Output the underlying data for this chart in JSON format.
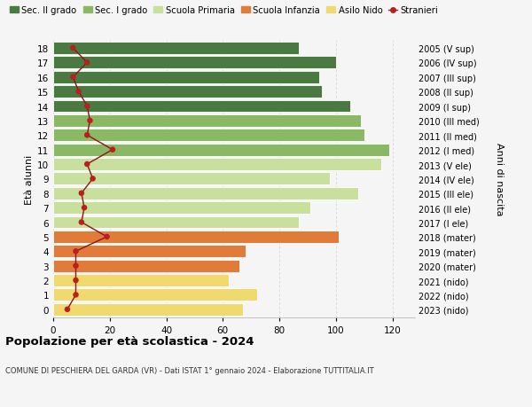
{
  "ages": [
    0,
    1,
    2,
    3,
    4,
    5,
    6,
    7,
    8,
    9,
    10,
    11,
    12,
    13,
    14,
    15,
    16,
    17,
    18
  ],
  "anni": [
    "2023 (nido)",
    "2022 (nido)",
    "2021 (nido)",
    "2020 (mater)",
    "2019 (mater)",
    "2018 (mater)",
    "2017 (I ele)",
    "2016 (II ele)",
    "2015 (III ele)",
    "2014 (IV ele)",
    "2013 (V ele)",
    "2012 (I med)",
    "2011 (II med)",
    "2010 (III med)",
    "2009 (I sup)",
    "2008 (II sup)",
    "2007 (III sup)",
    "2006 (IV sup)",
    "2005 (V sup)"
  ],
  "bar_values": [
    67,
    72,
    62,
    66,
    68,
    101,
    87,
    91,
    108,
    98,
    116,
    119,
    110,
    109,
    105,
    95,
    94,
    100,
    87
  ],
  "bar_colors": [
    "#f0d96e",
    "#f0d96e",
    "#f0d96e",
    "#e07b3a",
    "#e07b3a",
    "#e07b3a",
    "#c8df9e",
    "#c8df9e",
    "#c8df9e",
    "#c8df9e",
    "#c8df9e",
    "#8bb865",
    "#8bb865",
    "#8bb865",
    "#4a7a42",
    "#4a7a42",
    "#4a7a42",
    "#4a7a42",
    "#4a7a42"
  ],
  "stranieri": [
    5,
    8,
    8,
    8,
    8,
    19,
    10,
    11,
    10,
    14,
    12,
    21,
    12,
    13,
    12,
    9,
    7,
    12,
    7
  ],
  "ylabel_left": "Età alunni",
  "ylabel_right": "Anni di nascita",
  "title_bold": "Popolazione per età scolastica - 2024",
  "subtitle": "COMUNE DI PESCHIERA DEL GARDA (VR) - Dati ISTAT 1° gennaio 2024 - Elaborazione TUTTITALIA.IT",
  "xlim": [
    0,
    130
  ],
  "xticks": [
    0,
    20,
    40,
    60,
    80,
    100,
    120
  ],
  "legend_labels": [
    "Sec. II grado",
    "Sec. I grado",
    "Scuola Primaria",
    "Scuola Infanzia",
    "Asilo Nido",
    "Stranieri"
  ],
  "legend_colors": [
    "#4a7a42",
    "#8bb865",
    "#c8df9e",
    "#e07b3a",
    "#f0d96e",
    "#aa1e1e"
  ],
  "bg_color": "#f5f5f5",
  "grid_color": "#d0d0d0"
}
